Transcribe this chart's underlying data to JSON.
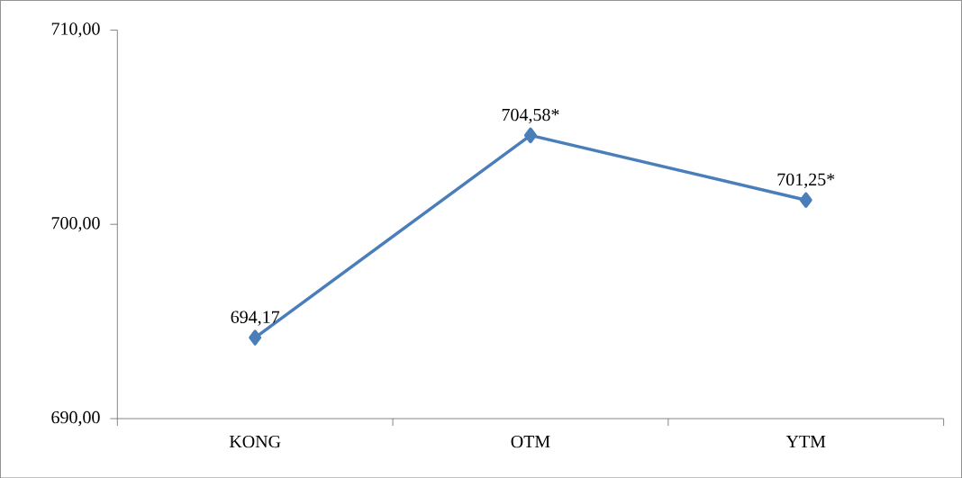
{
  "chart_data": {
    "type": "line",
    "categories": [
      "KONG",
      "OTM",
      "YTM"
    ],
    "series": [
      {
        "color": "#4a7ebb",
        "values": [
          694.17,
          704.58,
          701.25
        ],
        "value_labels": [
          "694,17",
          "704,58*",
          "701,25*"
        ]
      }
    ],
    "ylim": [
      690,
      710
    ],
    "yticks": [
      {
        "value": 690,
        "label": "690,00"
      },
      {
        "value": 700,
        "label": "700,00"
      },
      {
        "value": 710,
        "label": "710,00"
      }
    ],
    "marker": "diamond",
    "line_style": "solid",
    "grid": false
  }
}
